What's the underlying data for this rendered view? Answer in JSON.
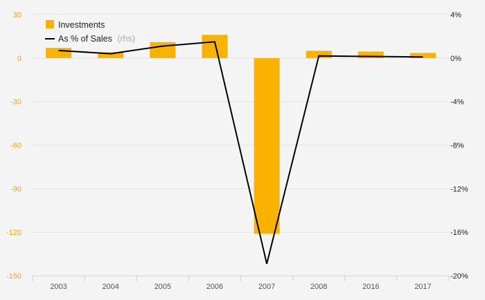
{
  "chart_data": {
    "type": "bar",
    "categories": [
      "2003",
      "2004",
      "2005",
      "2006",
      "2007",
      "2008",
      "2016",
      "2017"
    ],
    "series": [
      {
        "name": "Investments",
        "kind": "bar",
        "axis": "left",
        "values": [
          7,
          4,
          11,
          16,
          -121,
          5,
          4.5,
          3.5
        ]
      },
      {
        "name": "As % of Sales",
        "name_suffix": "(rhs)",
        "kind": "line",
        "axis": "right",
        "values": [
          0.7,
          0.4,
          1.1,
          1.5,
          -18.9,
          0.2,
          0.15,
          0.1
        ]
      }
    ],
    "y_left": {
      "ylim": [
        -150,
        30
      ],
      "ticks": [
        30,
        0,
        -30,
        -60,
        -90,
        -120,
        -150
      ],
      "tick_labels": [
        "30",
        "0",
        "-30",
        "-60",
        "-90",
        "-120",
        "-150"
      ]
    },
    "y_right": {
      "ylim": [
        -20,
        4
      ],
      "ticks": [
        4,
        0,
        -4,
        -8,
        -12,
        -16,
        -20
      ],
      "tick_labels": [
        "4%",
        "0%",
        "-4%",
        "-8%",
        "-12%",
        "-16%",
        "-20%"
      ]
    },
    "title": "",
    "xlabel": "",
    "ylabel": "",
    "legend_position": "top-left",
    "grid": true,
    "colors": {
      "bar": "#f9b200",
      "line": "#000000",
      "left_tick": "#f0a500",
      "right_tick": "#222222",
      "grid": "#e2e2e2",
      "background": "#f4f4f4"
    }
  }
}
